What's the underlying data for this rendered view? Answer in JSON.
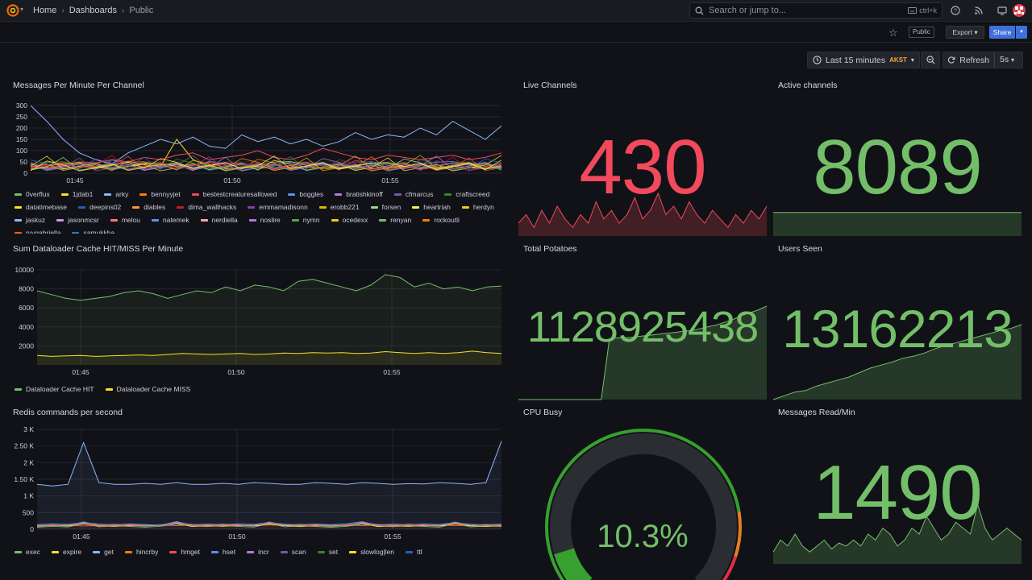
{
  "breadcrumbs": [
    "Home",
    "Dashboards",
    "Public"
  ],
  "search": {
    "placeholder": "Search or jump to...",
    "shortcut": "ctrl+k"
  },
  "toolbar": {
    "public_tag": "Public",
    "export_label": "Export",
    "share_label": "Share"
  },
  "time": {
    "range_label": "Last 15 minutes",
    "timezone": "AKST",
    "refresh_label": "Refresh",
    "interval": "5s"
  },
  "colors": {
    "green": "#73bf69",
    "red": "#f2495c",
    "bg": "#111217",
    "accent": "#3d71d9"
  },
  "panels": {
    "messages_per_channel": {
      "title": "Messages Per Minute Per Channel",
      "legend": [
        "0verflux",
        "1jdab1",
        "arky",
        "bennyyjet",
        "bestestcreaturesallowed",
        "boggles",
        "bratishkinoff",
        "cfmarcus",
        "craftscreed",
        "datatimebase",
        "deepins02",
        "diables",
        "dima_wallhacks",
        "emmamadisonn",
        "erobb221",
        "forsen",
        "heartriah",
        "herdyn",
        "jaskuz",
        "jasonmcsr",
        "melou",
        "natemek",
        "nerdiella",
        "noslire",
        "nymn",
        "ocedexx",
        "renyan",
        "rockoutli",
        "ryygabriella",
        "samukkha"
      ],
      "legend_colors": [
        "#73bf69",
        "#fade2a",
        "#8ab8ff",
        "#ff780a",
        "#f2495c",
        "#5794f2",
        "#b877d9",
        "#705da0",
        "#37872d",
        "#fade2a",
        "#1f60c4",
        "#ff9830",
        "#c4162a",
        "#8f3bb8",
        "#e0b400",
        "#96d98d",
        "#ffee52",
        "#f2cc0c",
        "#8ab8ff",
        "#ca95e5",
        "#ff7383",
        "#5794f2",
        "#ffa6b0",
        "#b877d9",
        "#56a64b",
        "#f2cc0c",
        "#73bf69",
        "#ff780a",
        "#fa6400",
        "#3274d9"
      ]
    },
    "cache_hit_miss": {
      "title": "Sum Dataloader Cache HIT/MISS Per Minute",
      "legend": [
        "Dataloader Cache HIT",
        "Dataloader Cache MISS"
      ],
      "legend_colors": [
        "#73bf69",
        "#fade2a"
      ]
    },
    "redis_commands": {
      "title": "Redis commands per second",
      "legend": [
        "exec",
        "expire",
        "get",
        "hincrby",
        "hmget",
        "hset",
        "incr",
        "scan",
        "set",
        "slowlog|len",
        "ttl"
      ],
      "legend_colors": [
        "#73bf69",
        "#fade2a",
        "#8ab8ff",
        "#ff780a",
        "#f2495c",
        "#5794f2",
        "#b877d9",
        "#705da0",
        "#37872d",
        "#fade2a",
        "#1f60c4"
      ]
    },
    "live_channels": {
      "title": "Live Channels",
      "value": "430"
    },
    "active_channels": {
      "title": "Active channels",
      "value": "8089"
    },
    "total_potatoes": {
      "title": "Total Potatoes",
      "value": "1128925438"
    },
    "users_seen": {
      "title": "Users Seen",
      "value": "13162213"
    },
    "cpu_busy": {
      "title": "CPU Busy",
      "value": "10.3%",
      "percent": 10.3
    },
    "messages_read": {
      "title": "Messages Read/Min",
      "value": "1490"
    }
  },
  "chart_data": [
    {
      "type": "line",
      "title": "Messages Per Minute Per Channel",
      "x_ticks": [
        "01:45",
        "01:50",
        "01:55"
      ],
      "y_ticks": [
        0,
        50,
        100,
        150,
        200,
        250,
        300
      ],
      "ylim": [
        0,
        300
      ],
      "series": [
        {
          "name": "0verflux",
          "values": [
            300,
            230,
            150,
            90,
            60,
            40,
            90,
            120,
            150,
            130,
            160,
            120,
            110,
            170,
            140,
            160,
            130,
            150,
            120,
            140,
            180,
            150,
            170,
            160,
            200,
            170,
            230,
            190,
            150,
            210
          ]
        },
        {
          "name": "1jdab1",
          "values": [
            20,
            25,
            20,
            30,
            25,
            20,
            30,
            40,
            30,
            150,
            60,
            30,
            20,
            25,
            30,
            20,
            25,
            30,
            20,
            25,
            30,
            20,
            25,
            30,
            20,
            25,
            30,
            25,
            20,
            25
          ]
        },
        {
          "name": "arky",
          "values": [
            30,
            40,
            35,
            50,
            45,
            60,
            50,
            70,
            60,
            80,
            90,
            60,
            70,
            80,
            100,
            70,
            60,
            80,
            110,
            90,
            70,
            60,
            80,
            70,
            60,
            70,
            80,
            60,
            70,
            90
          ]
        }
      ]
    },
    {
      "type": "area",
      "title": "Sum Dataloader Cache HIT/MISS Per Minute",
      "x_ticks": [
        "01:45",
        "01:50",
        "01:55"
      ],
      "y_ticks": [
        2000,
        4000,
        6000,
        8000,
        10000
      ],
      "ylim": [
        0,
        10000
      ],
      "series": [
        {
          "name": "Dataloader Cache HIT",
          "values": [
            7800,
            7400,
            7000,
            6800,
            7000,
            7200,
            7600,
            7800,
            7500,
            7000,
            7400,
            7800,
            7600,
            8200,
            7800,
            8400,
            8200,
            7800,
            8800,
            9000,
            8600,
            8200,
            7800,
            8400,
            9500,
            9200,
            8200,
            8600,
            8000,
            8200,
            7800,
            8200,
            8300
          ]
        },
        {
          "name": "Dataloader Cache MISS",
          "values": [
            1000,
            900,
            950,
            1000,
            900,
            950,
            1000,
            1050,
            1000,
            1100,
            1200,
            1150,
            1100,
            1150,
            1200,
            1100,
            1150,
            1250,
            1200,
            1300,
            1250,
            1300,
            1200,
            1250,
            1400,
            1300,
            1200,
            1300,
            1200,
            1300,
            1450,
            1300,
            1200
          ]
        }
      ]
    },
    {
      "type": "area",
      "title": "Redis commands per second",
      "x_ticks": [
        "01:45",
        "01:50",
        "01:55"
      ],
      "y_ticks": [
        "0",
        "500",
        "1 K",
        "1.50 K",
        "2 K",
        "2.50 K",
        "3 K"
      ],
      "ylim": [
        0,
        3000
      ],
      "series": [
        {
          "name": "exec",
          "values": [
            1350,
            1300,
            1350,
            2600,
            1400,
            1350,
            1350,
            1380,
            1350,
            1400,
            1350,
            1350,
            1380,
            1350,
            1400,
            1380,
            1350,
            1350,
            1400,
            1380,
            1350,
            1400,
            1380,
            1350,
            1370,
            1360,
            1400,
            1380,
            1350,
            1400,
            2650
          ]
        },
        {
          "name": "get",
          "values": [
            100,
            110,
            120,
            100,
            110,
            120,
            150,
            110,
            120,
            110,
            130,
            110,
            140,
            120,
            110,
            130,
            110,
            120,
            150,
            110,
            120,
            110,
            130,
            120,
            110,
            120,
            130,
            110,
            120,
            130,
            120
          ]
        }
      ]
    }
  ]
}
